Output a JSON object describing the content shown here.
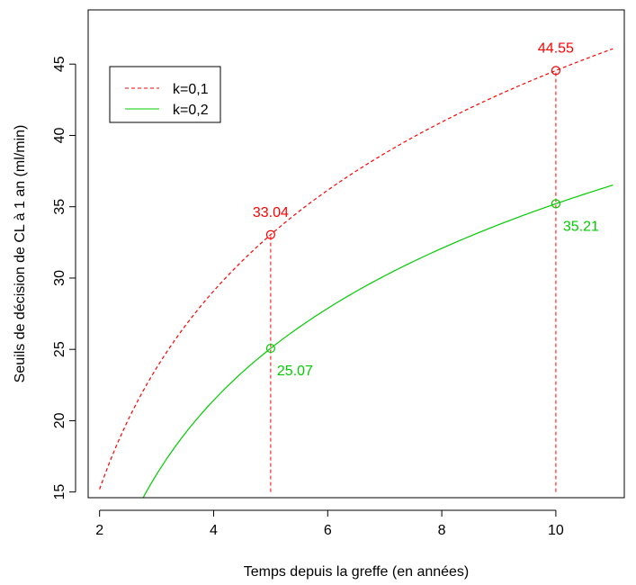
{
  "chart_data": {
    "type": "line",
    "title": "",
    "xlabel": "Temps depuis la greffe (en années)",
    "ylabel": "Seuils de décision de CL à 1 an (ml/min)",
    "xlim": [
      1.8,
      11.2
    ],
    "ylim": [
      14.6,
      48.8
    ],
    "x_ticks": [
      2,
      4,
      6,
      8,
      10
    ],
    "y_ticks": [
      15,
      20,
      25,
      30,
      35,
      40,
      45
    ],
    "grid": false,
    "legend_position": "top-left",
    "series": [
      {
        "name": "k=0,1",
        "color": "#ff0000",
        "style": "dashed",
        "x": [
          2,
          2.5,
          3,
          3.5,
          4,
          4.5,
          5,
          5.5,
          6,
          6.5,
          7,
          7.5,
          8,
          8.5,
          9,
          9.5,
          10,
          10.5,
          11
        ],
        "y": [
          17.3,
          20.5,
          23.3,
          26.0,
          28.6,
          30.9,
          33.04,
          34.9,
          36.6,
          38.2,
          39.6,
          41.0,
          42.2,
          43.4,
          44.5,
          45.6,
          44.55,
          45.4,
          46.3
        ]
      },
      {
        "name": "k=0,2",
        "color": "#00cc00",
        "style": "solid",
        "x": [
          2.3,
          2.5,
          3,
          3.5,
          4,
          4.5,
          5,
          5.5,
          6,
          6.5,
          7,
          7.5,
          8,
          8.5,
          9,
          9.5,
          10,
          10.5,
          11
        ],
        "y": [
          13.7,
          14.7,
          17.0,
          19.4,
          21.5,
          23.4,
          25.07,
          26.5,
          27.8,
          29.0,
          30.1,
          31.1,
          32.0,
          32.9,
          33.7,
          34.5,
          35.21,
          35.9,
          36.6
        ]
      }
    ],
    "markers": [
      {
        "series": 0,
        "x": 5,
        "y": 33.04,
        "label": "33.04"
      },
      {
        "series": 0,
        "x": 10,
        "y": 44.55,
        "label": "44.55"
      },
      {
        "series": 1,
        "x": 5,
        "y": 25.07,
        "label": "25.07"
      },
      {
        "series": 1,
        "x": 10,
        "y": 35.21,
        "label": "35.21"
      }
    ],
    "vlines": [
      {
        "x": 5,
        "y_from": 15,
        "y_to": 33.04,
        "color": "#ff0000"
      },
      {
        "x": 10,
        "y_from": 15,
        "y_to": 44.55,
        "color": "#ff0000"
      }
    ]
  }
}
